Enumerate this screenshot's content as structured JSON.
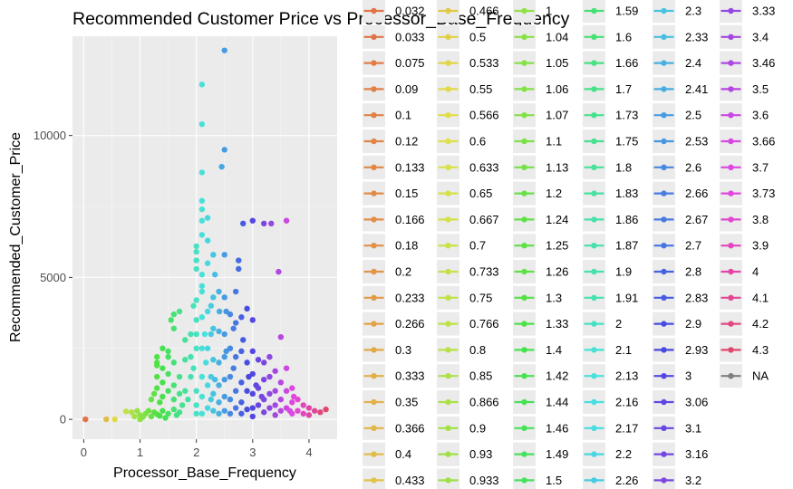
{
  "chart_data": {
    "type": "scatter",
    "title": "Recommended Customer Price vs Processor_Base_Frequency",
    "xlabel": "Processor_Base_Frequency",
    "ylabel": "Recommended_Customer_Price",
    "xlim": [
      -0.2,
      4.5
    ],
    "ylim": [
      -700,
      13500
    ],
    "xticks": [
      0,
      1,
      2,
      3,
      4
    ],
    "xtick_labels": [
      "0",
      "1",
      "2",
      "3",
      "4"
    ],
    "yticks": [
      0,
      5000,
      10000
    ],
    "ytick_labels": [
      "0",
      "5000",
      "10000"
    ],
    "grid": true,
    "legend_position": "right",
    "legend_columns": [
      [
        "0.032",
        "0.033",
        "0.075",
        "0.09",
        "0.1",
        "0.12",
        "0.133",
        "0.15",
        "0.166",
        "0.18",
        "0.2",
        "0.233",
        "0.266",
        "0.3",
        "0.333",
        "0.35",
        "0.366",
        "0.4",
        "0.433"
      ],
      [
        "0.466",
        "0.5",
        "0.533",
        "0.55",
        "0.566",
        "0.6",
        "0.633",
        "0.65",
        "0.667",
        "0.7",
        "0.733",
        "0.75",
        "0.766",
        "0.8",
        "0.85",
        "0.866",
        "0.9",
        "0.93",
        "0.933"
      ],
      [
        "1",
        "1.04",
        "1.05",
        "1.06",
        "1.07",
        "1.1",
        "1.13",
        "1.2",
        "1.24",
        "1.25",
        "1.26",
        "1.3",
        "1.33",
        "1.4",
        "1.42",
        "1.44",
        "1.46",
        "1.49",
        "1.5"
      ],
      [
        "1.59",
        "1.6",
        "1.66",
        "1.7",
        "1.73",
        "1.75",
        "1.8",
        "1.83",
        "1.86",
        "1.87",
        "1.9",
        "1.91",
        "2",
        "2.1",
        "2.13",
        "2.16",
        "2.17",
        "2.2",
        "2.26"
      ],
      [
        "2.3",
        "2.33",
        "2.4",
        "2.41",
        "2.5",
        "2.53",
        "2.6",
        "2.66",
        "2.67",
        "2.7",
        "2.8",
        "2.83",
        "2.9",
        "2.93",
        "3",
        "3.06",
        "3.1",
        "3.16",
        "3.2"
      ],
      [
        "3.33",
        "3.4",
        "3.46",
        "3.5",
        "3.6",
        "3.66",
        "3.7",
        "3.73",
        "3.8",
        "3.9",
        "4",
        "4.1",
        "4.2",
        "4.3",
        "NA"
      ]
    ],
    "na_color": "#7f7f7f",
    "points": [
      [
        0.03,
        0
      ],
      [
        0.4,
        0
      ],
      [
        0.55,
        0
      ],
      [
        0.75,
        280
      ],
      [
        0.85,
        250
      ],
      [
        0.9,
        100
      ],
      [
        0.95,
        300
      ],
      [
        1.0,
        0
      ],
      [
        1.0,
        150
      ],
      [
        1.05,
        80
      ],
      [
        1.1,
        200
      ],
      [
        1.15,
        300
      ],
      [
        1.2,
        100
      ],
      [
        1.25,
        250
      ],
      [
        1.3,
        180
      ],
      [
        1.35,
        120
      ],
      [
        1.4,
        300
      ],
      [
        1.45,
        50
      ],
      [
        1.5,
        200
      ],
      [
        1.2,
        700
      ],
      [
        1.25,
        900
      ],
      [
        1.3,
        1100
      ],
      [
        1.3,
        1500
      ],
      [
        1.35,
        600
      ],
      [
        1.4,
        800
      ],
      [
        1.4,
        1300
      ],
      [
        1.3,
        2000
      ],
      [
        1.3,
        2200
      ],
      [
        1.3,
        1900
      ],
      [
        1.4,
        1800
      ],
      [
        1.4,
        2500
      ],
      [
        1.5,
        2400
      ],
      [
        1.5,
        2200
      ],
      [
        1.5,
        1600
      ],
      [
        1.5,
        1000
      ],
      [
        1.55,
        3500
      ],
      [
        1.6,
        3700
      ],
      [
        1.6,
        3200
      ],
      [
        1.7,
        3800
      ],
      [
        1.6,
        2000
      ],
      [
        1.6,
        1200
      ],
      [
        1.6,
        700
      ],
      [
        1.6,
        350
      ],
      [
        1.65,
        150
      ],
      [
        1.7,
        250
      ],
      [
        1.7,
        900
      ],
      [
        1.7,
        1500
      ],
      [
        1.75,
        500
      ],
      [
        1.8,
        1000
      ],
      [
        1.8,
        2100
      ],
      [
        1.8,
        2800
      ],
      [
        1.85,
        700
      ],
      [
        1.9,
        1500
      ],
      [
        1.9,
        3000
      ],
      [
        1.9,
        2200
      ],
      [
        1.95,
        1800
      ],
      [
        1.95,
        4000
      ],
      [
        2.0,
        2500
      ],
      [
        2.0,
        3000
      ],
      [
        2.0,
        3500
      ],
      [
        2.0,
        6100
      ],
      [
        2.0,
        5900
      ],
      [
        2.0,
        5600
      ],
      [
        2.0,
        5300
      ],
      [
        2.0,
        4200
      ],
      [
        2.0,
        1000
      ],
      [
        2.0,
        500
      ],
      [
        2.0,
        200
      ],
      [
        2.1,
        11800
      ],
      [
        2.1,
        10400
      ],
      [
        2.1,
        8700
      ],
      [
        2.1,
        7700
      ],
      [
        2.1,
        7400
      ],
      [
        2.1,
        7000
      ],
      [
        2.1,
        6500
      ],
      [
        2.1,
        5100
      ],
      [
        2.1,
        4700
      ],
      [
        2.1,
        4500
      ],
      [
        2.1,
        3600
      ],
      [
        2.1,
        2500
      ],
      [
        2.1,
        1500
      ],
      [
        2.1,
        800
      ],
      [
        2.1,
        200
      ],
      [
        2.15,
        3000
      ],
      [
        2.17,
        2000
      ],
      [
        2.2,
        7100
      ],
      [
        2.2,
        6300
      ],
      [
        2.2,
        5500
      ],
      [
        2.2,
        3800
      ],
      [
        2.2,
        2500
      ],
      [
        2.2,
        1200
      ],
      [
        2.2,
        400
      ],
      [
        2.26,
        4000
      ],
      [
        2.26,
        3000
      ],
      [
        2.26,
        1500
      ],
      [
        2.26,
        700
      ],
      [
        2.3,
        5800
      ],
      [
        2.3,
        4300
      ],
      [
        2.3,
        3200
      ],
      [
        2.3,
        2100
      ],
      [
        2.3,
        900
      ],
      [
        2.3,
        300
      ],
      [
        2.33,
        5100
      ],
      [
        2.33,
        1400
      ],
      [
        2.4,
        4500
      ],
      [
        2.4,
        3100
      ],
      [
        2.4,
        2000
      ],
      [
        2.4,
        1200
      ],
      [
        2.4,
        600
      ],
      [
        2.4,
        200
      ],
      [
        2.41,
        3800
      ],
      [
        2.5,
        13000
      ],
      [
        2.5,
        9500
      ],
      [
        2.5,
        5800
      ],
      [
        2.5,
        4300
      ],
      [
        2.5,
        3000
      ],
      [
        2.5,
        2200
      ],
      [
        2.5,
        1400
      ],
      [
        2.5,
        800
      ],
      [
        2.5,
        300
      ],
      [
        2.45,
        8900
      ],
      [
        2.53,
        3800
      ],
      [
        2.53,
        2400
      ],
      [
        2.6,
        3700
      ],
      [
        2.6,
        2500
      ],
      [
        2.6,
        1500
      ],
      [
        2.6,
        700
      ],
      [
        2.6,
        200
      ],
      [
        2.66,
        3200
      ],
      [
        2.66,
        1800
      ],
      [
        2.7,
        4500
      ],
      [
        2.7,
        3400
      ],
      [
        2.7,
        2200
      ],
      [
        2.7,
        1000
      ],
      [
        2.7,
        400
      ],
      [
        2.75,
        5600
      ],
      [
        2.75,
        5300
      ],
      [
        2.8,
        3600
      ],
      [
        2.8,
        2400
      ],
      [
        2.8,
        1300
      ],
      [
        2.8,
        600
      ],
      [
        2.8,
        200
      ],
      [
        2.83,
        6900
      ],
      [
        2.83,
        2800
      ],
      [
        2.9,
        3900
      ],
      [
        2.9,
        2000
      ],
      [
        2.9,
        1000
      ],
      [
        2.9,
        350
      ],
      [
        2.93,
        1500
      ],
      [
        3.0,
        7000
      ],
      [
        3.0,
        3500
      ],
      [
        3.0,
        2400
      ],
      [
        3.0,
        1600
      ],
      [
        3.0,
        900
      ],
      [
        3.0,
        400
      ],
      [
        3.0,
        100
      ],
      [
        3.06,
        1200
      ],
      [
        3.1,
        2100
      ],
      [
        3.1,
        1100
      ],
      [
        3.1,
        500
      ],
      [
        3.16,
        800
      ],
      [
        3.2,
        6900
      ],
      [
        3.2,
        2000
      ],
      [
        3.2,
        1400
      ],
      [
        3.2,
        700
      ],
      [
        3.2,
        250
      ],
      [
        3.3,
        2200
      ],
      [
        3.3,
        1500
      ],
      [
        3.3,
        900
      ],
      [
        3.3,
        400
      ],
      [
        3.33,
        6900
      ],
      [
        3.4,
        1700
      ],
      [
        3.4,
        1000
      ],
      [
        3.4,
        500
      ],
      [
        3.4,
        150
      ],
      [
        3.46,
        5200
      ],
      [
        3.5,
        2900
      ],
      [
        3.5,
        1300
      ],
      [
        3.5,
        700
      ],
      [
        3.5,
        300
      ],
      [
        3.6,
        7000
      ],
      [
        3.6,
        1800
      ],
      [
        3.6,
        1000
      ],
      [
        3.6,
        400
      ],
      [
        3.66,
        300
      ],
      [
        3.7,
        1100
      ],
      [
        3.7,
        600
      ],
      [
        3.7,
        200
      ],
      [
        3.73,
        800
      ],
      [
        3.8,
        700
      ],
      [
        3.8,
        300
      ],
      [
        3.9,
        500
      ],
      [
        3.9,
        200
      ],
      [
        4.0,
        400
      ],
      [
        4.0,
        150
      ],
      [
        4.1,
        300
      ],
      [
        4.2,
        250
      ],
      [
        4.3,
        350
      ]
    ]
  }
}
